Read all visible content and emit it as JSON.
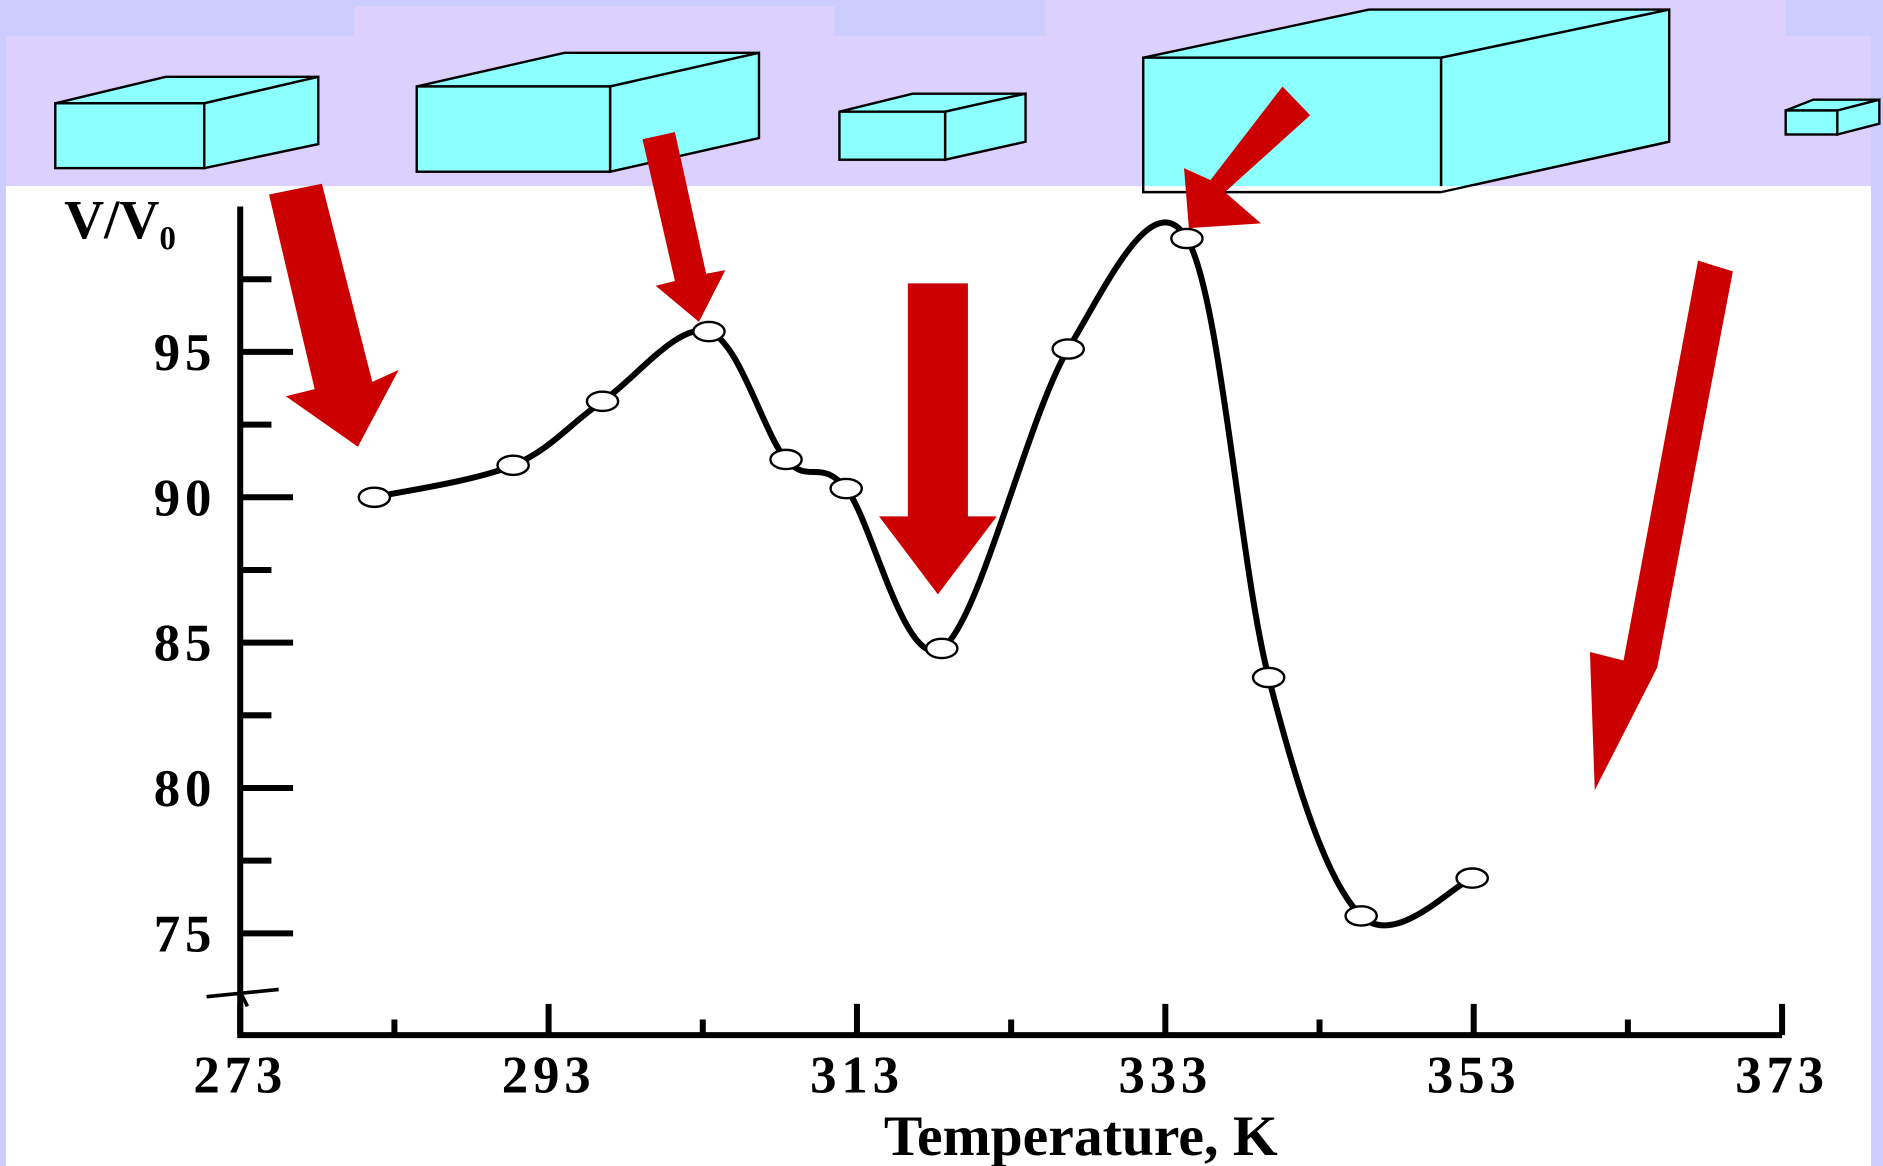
{
  "chart_data": {
    "type": "line",
    "x_label": "Temperature, K",
    "y_label": "V/V₀",
    "x": [
      281.7,
      290.7,
      296.5,
      303.4,
      308.4,
      312.3,
      318.5,
      326.7,
      334.4,
      339.7,
      345.7,
      352.9
    ],
    "series": [
      {
        "color": "#000000",
        "values": [
          90,
          91.1,
          93.3,
          95.7,
          91.3,
          90.3,
          84.8,
          95.1,
          98.9,
          83.8,
          75.6,
          76.9
        ]
      }
    ],
    "xlim": [
      273,
      373
    ],
    "xticks": [
      273,
      293,
      313,
      333,
      353,
      373
    ],
    "xminor_ticks": [
      283,
      303,
      323,
      343,
      363
    ],
    "ylim": [
      71.5,
      100
    ],
    "yticks": [
      75,
      80,
      85,
      90,
      95
    ],
    "yminor_ticks": [
      77.5,
      82.5,
      87.5,
      92.5,
      97.5
    ]
  }
}
